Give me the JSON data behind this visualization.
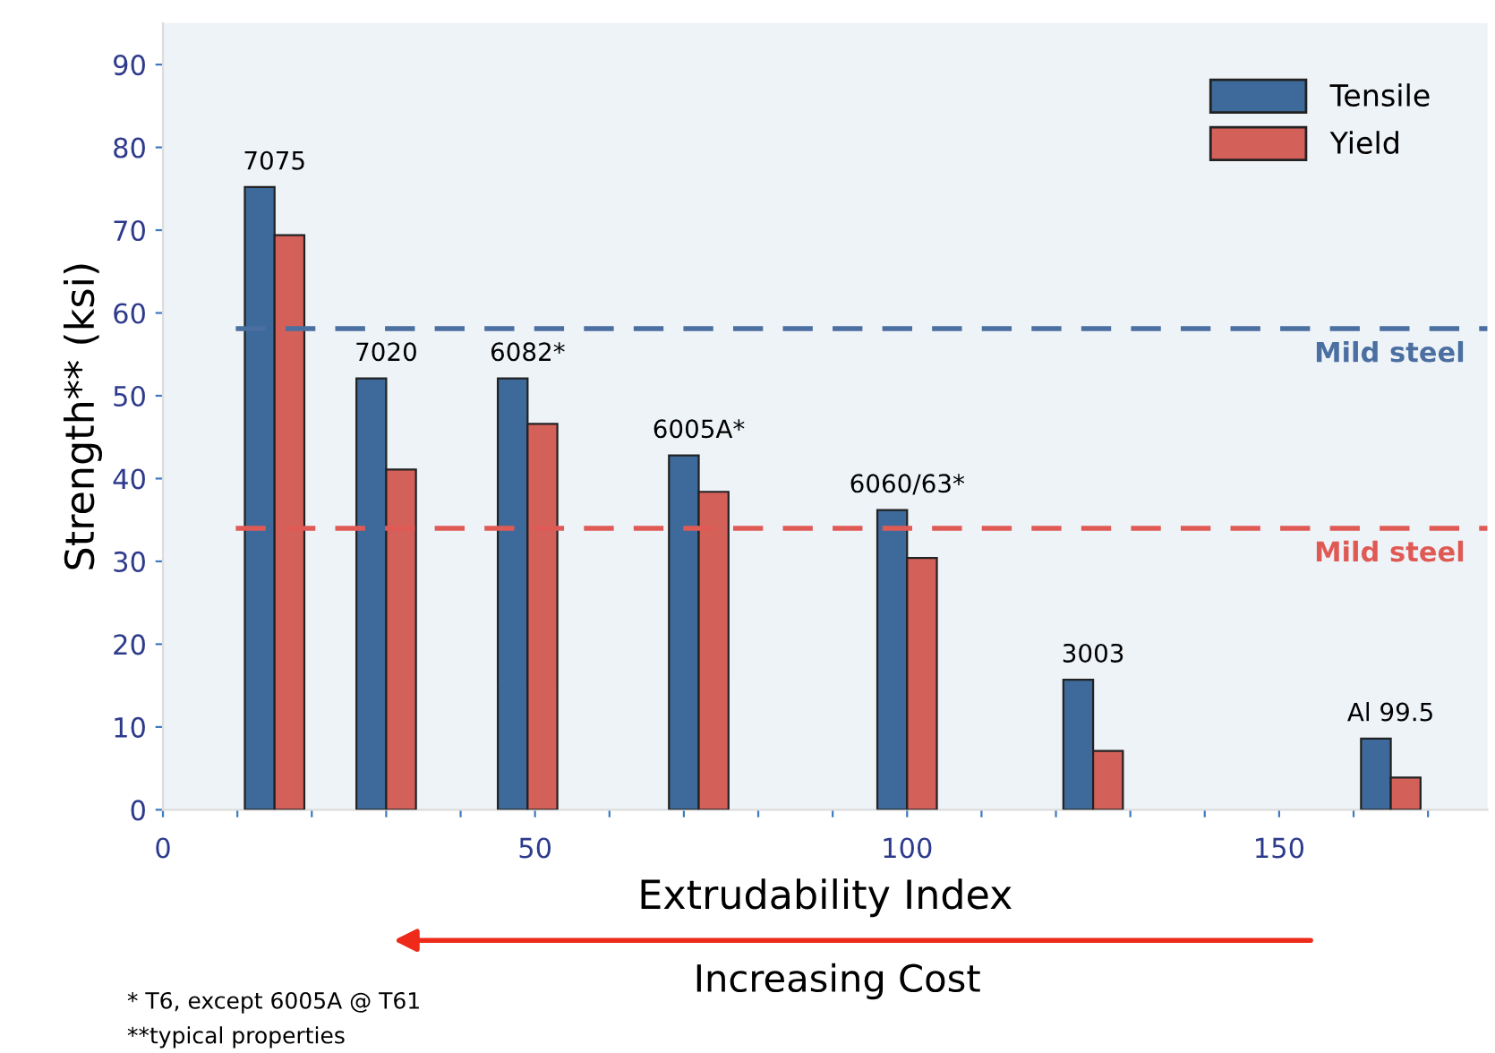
{
  "chart_data": {
    "type": "bar",
    "xlabel": "Extrudability Index",
    "ylabel": "Strength** (ksi)",
    "x": [
      15,
      30,
      49,
      72,
      100,
      125,
      165
    ],
    "series": [
      {
        "name": "Tensile",
        "color": "#3d6a9a",
        "values": [
          75.2,
          52.1,
          52.1,
          42.8,
          36.2,
          15.7,
          8.6
        ]
      },
      {
        "name": "Yield",
        "color": "#d4605a",
        "values": [
          69.4,
          41.1,
          46.6,
          38.4,
          30.4,
          7.1,
          3.9
        ]
      }
    ],
    "xlim": [
      0,
      178
    ],
    "ylim": [
      0,
      95
    ],
    "xticks": [
      0,
      {
        "value": 10,
        "label": null
      },
      {
        "value": 20,
        "label": null
      },
      {
        "value": 30,
        "label": null
      },
      {
        "value": 40,
        "label": null
      },
      50,
      {
        "value": 60,
        "label": null
      },
      {
        "value": 70,
        "label": null
      },
      {
        "value": 80,
        "label": null
      },
      {
        "value": 90,
        "label": null
      },
      100,
      {
        "value": 110,
        "label": null
      },
      {
        "value": 120,
        "label": null
      },
      {
        "value": 130,
        "label": null
      },
      {
        "value": 140,
        "label": null
      },
      150,
      {
        "value": 160,
        "label": null
      },
      {
        "value": 170,
        "label": null
      }
    ],
    "yticks": [
      0,
      10,
      20,
      30,
      40,
      50,
      60,
      70,
      80,
      90
    ],
    "ref_lines": [
      {
        "axis": "y",
        "value": 58.1,
        "label": "Mild steel",
        "color": "#4a6fa0",
        "line_style": "dashed"
      },
      {
        "axis": "y",
        "value": 34.0,
        "label": "Mild steel",
        "color": "#e05a55",
        "line_style": "dashed"
      }
    ],
    "annotations": [
      {
        "text": "7075",
        "x": 15,
        "y": 75.2
      },
      {
        "text": "7020",
        "x": 30,
        "y": 52.1
      },
      {
        "text": "6082*",
        "x": 49,
        "y": 52.1
      },
      {
        "text": "6005A*",
        "x": 72,
        "y": 42.8
      },
      {
        "text": "6060/63*",
        "x": 100,
        "y": 36.2
      },
      {
        "text": "3003",
        "x": 125,
        "y": 15.7
      },
      {
        "text": "Al 99.5",
        "x": 165,
        "y": 8.6
      },
      "Increasing Cost",
      "* T6, except 6005A @ T61",
      "**typical properties"
    ],
    "legend": "top right",
    "grid": false
  }
}
